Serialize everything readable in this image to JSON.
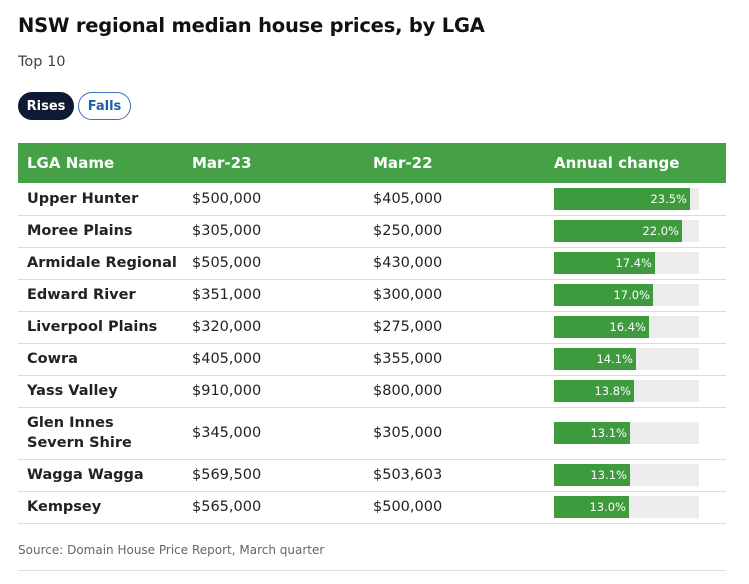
{
  "header": {
    "title": "NSW regional median house prices, by LGA",
    "subtitle": "Top 10"
  },
  "tabs": [
    {
      "label": "Rises",
      "active": true
    },
    {
      "label": "Falls",
      "active": false
    }
  ],
  "colors": {
    "header_bg": "#46a046",
    "bar_fill": "#3d9a3d",
    "bar_track": "#ececec",
    "active_tab": "#0e1a33",
    "inactive_tab_text": "#1f5fa8"
  },
  "table": {
    "columns": [
      "LGA Name",
      "Mar-23",
      "Mar-22",
      "Annual change"
    ],
    "bar_max_percent": 25,
    "rows": [
      {
        "name": "Upper Hunter",
        "mar23": "$500,000",
        "mar22": "$405,000",
        "change": "23.5%",
        "change_value": 23.5
      },
      {
        "name": "Moree Plains",
        "mar23": "$305,000",
        "mar22": "$250,000",
        "change": "22.0%",
        "change_value": 22.0
      },
      {
        "name": "Armidale Regional",
        "mar23": "$505,000",
        "mar22": "$430,000",
        "change": "17.4%",
        "change_value": 17.4
      },
      {
        "name": "Edward River",
        "mar23": "$351,000",
        "mar22": "$300,000",
        "change": "17.0%",
        "change_value": 17.0
      },
      {
        "name": "Liverpool Plains",
        "mar23": "$320,000",
        "mar22": "$275,000",
        "change": "16.4%",
        "change_value": 16.4
      },
      {
        "name": "Cowra",
        "mar23": "$405,000",
        "mar22": "$355,000",
        "change": "14.1%",
        "change_value": 14.1
      },
      {
        "name": "Yass Valley",
        "mar23": "$910,000",
        "mar22": "$800,000",
        "change": "13.8%",
        "change_value": 13.8
      },
      {
        "name": "Glen Innes Severn Shire",
        "mar23": "$345,000",
        "mar22": "$305,000",
        "change": "13.1%",
        "change_value": 13.1
      },
      {
        "name": "Wagga Wagga",
        "mar23": "$569,500",
        "mar22": "$503,603",
        "change": "13.1%",
        "change_value": 13.1
      },
      {
        "name": "Kempsey",
        "mar23": "$565,000",
        "mar22": "$500,000",
        "change": "13.0%",
        "change_value": 13.0
      }
    ]
  },
  "footer": {
    "source": "Source: Domain House Price Report, March quarter"
  }
}
